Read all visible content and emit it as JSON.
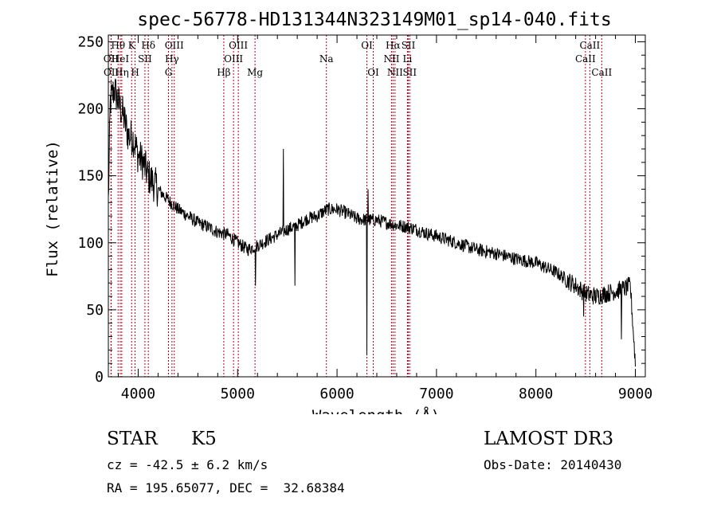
{
  "chart_data": {
    "type": "line",
    "title": "spec-56778-HD131344N323149M01_sp14-040.fits",
    "xlabel": "Wavelength (Å)",
    "ylabel": "Flux (relative)",
    "xlim": [
      3700,
      9100
    ],
    "ylim": [
      0,
      255
    ],
    "xticks": [
      4000,
      5000,
      6000,
      7000,
      8000,
      9000
    ],
    "yticks": [
      0,
      50,
      100,
      150,
      200,
      250
    ],
    "continuum": {
      "x": [
        3700,
        3720,
        3760,
        3800,
        3850,
        3900,
        3950,
        4000,
        4050,
        4100,
        4200,
        4300,
        4400,
        4500,
        4600,
        4700,
        4800,
        4900,
        5000,
        5100,
        5200,
        5300,
        5400,
        5500,
        5600,
        5700,
        5800,
        5900,
        6000,
        6100,
        6200,
        6300,
        6400,
        6500,
        6600,
        6700,
        6800,
        6900,
        7000,
        7200,
        7400,
        7600,
        7800,
        8000,
        8200,
        8400,
        8500,
        8600,
        8700,
        8800,
        8900,
        8950,
        9000
      ],
      "y": [
        130,
        205,
        215,
        205,
        195,
        180,
        178,
        165,
        160,
        150,
        140,
        132,
        125,
        120,
        115,
        112,
        108,
        106,
        100,
        95,
        98,
        102,
        106,
        110,
        113,
        118,
        120,
        125,
        125,
        122,
        118,
        117,
        117,
        115,
        113,
        112,
        110,
        107,
        105,
        100,
        95,
        92,
        88,
        85,
        78,
        68,
        62,
        60,
        62,
        64,
        66,
        68,
        10
      ]
    },
    "features": [
      {
        "x": 5460,
        "y": 170
      },
      {
        "x": 5577,
        "y": 68
      },
      {
        "x": 6300,
        "y": 16
      },
      {
        "x": 6310,
        "y": 140
      },
      {
        "x": 5180,
        "y": 68
      },
      {
        "x": 8480,
        "y": 45
      },
      {
        "x": 8860,
        "y": 28
      }
    ],
    "spectral_lines": [
      {
        "name": "OII",
        "x": 3727,
        "row": 1
      },
      {
        "name": "OII",
        "x": 3729,
        "row": 2
      },
      {
        "name": "Hθ",
        "x": 3798,
        "row": 0
      },
      {
        "name": "HeI",
        "x": 3820,
        "row": 1
      },
      {
        "name": "Hη",
        "x": 3835,
        "row": 2
      },
      {
        "name": "K",
        "x": 3934,
        "row": 0
      },
      {
        "name": "SII",
        "x": 4068,
        "row": 1
      },
      {
        "name": "H",
        "x": 3969,
        "row": 2
      },
      {
        "name": "Hδ",
        "x": 4102,
        "row": 0
      },
      {
        "name": "OIII",
        "x": 4363,
        "row": 0
      },
      {
        "name": "Hγ",
        "x": 4340,
        "row": 1
      },
      {
        "name": "G",
        "x": 4305,
        "row": 2
      },
      {
        "name": "Hβ",
        "x": 4861,
        "row": 2
      },
      {
        "name": "OIII",
        "x": 5007,
        "row": 0
      },
      {
        "name": "OIII",
        "x": 4959,
        "row": 1
      },
      {
        "name": "Mg",
        "x": 5175,
        "row": 2
      },
      {
        "name": "Na",
        "x": 5893,
        "row": 1
      },
      {
        "name": "OI",
        "x": 6300,
        "row": 0
      },
      {
        "name": "OI",
        "x": 6364,
        "row": 2
      },
      {
        "name": "Hα",
        "x": 6563,
        "row": 0
      },
      {
        "name": "SII",
        "x": 6717,
        "row": 0
      },
      {
        "name": "NII",
        "x": 6548,
        "row": 1
      },
      {
        "name": "Li",
        "x": 6708,
        "row": 1
      },
      {
        "name": "NII",
        "x": 6583,
        "row": 2
      },
      {
        "name": "SII",
        "x": 6731,
        "row": 2
      },
      {
        "name": "CaII",
        "x": 8542,
        "row": 0
      },
      {
        "name": "CaII",
        "x": 8498,
        "row": 1
      },
      {
        "name": "CaII",
        "x": 8662,
        "row": 2
      }
    ]
  },
  "info": {
    "class": "STAR",
    "subclass": "K5",
    "survey": "LAMOST DR3",
    "cz": "cz = -42.5 ± 6.2 km/s",
    "obs_date": "Obs-Date: 20140430",
    "coords": "RA = 195.65077, DEC =  32.68384"
  },
  "colors": {
    "line_marker": "#b3001b",
    "spectrum": "#000000"
  }
}
